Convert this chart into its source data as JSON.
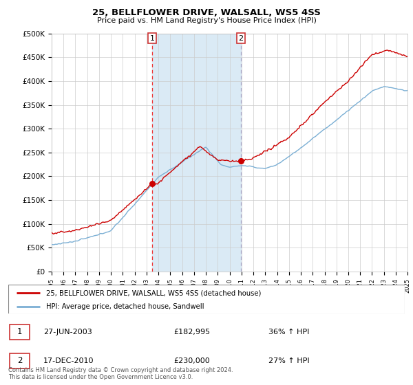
{
  "title": "25, BELLFLOWER DRIVE, WALSALL, WS5 4SS",
  "subtitle": "Price paid vs. HM Land Registry's House Price Index (HPI)",
  "ylim": [
    0,
    500000
  ],
  "yticks": [
    0,
    50000,
    100000,
    150000,
    200000,
    250000,
    300000,
    350000,
    400000,
    450000,
    500000
  ],
  "ytick_labels": [
    "£0",
    "£50K",
    "£100K",
    "£150K",
    "£200K",
    "£250K",
    "£300K",
    "£350K",
    "£400K",
    "£450K",
    "£500K"
  ],
  "hpi_color": "#7bafd4",
  "price_color": "#cc0000",
  "vline1_color": "#ee3333",
  "vline2_color": "#aaaacc",
  "shade_color": "#daeaf5",
  "legend_line1": "25, BELLFLOWER DRIVE, WALSALL, WS5 4SS (detached house)",
  "legend_line2": "HPI: Average price, detached house, Sandwell",
  "table_rows": [
    {
      "num": "1",
      "date": "27-JUN-2003",
      "price": "£182,995",
      "hpi": "36% ↑ HPI"
    },
    {
      "num": "2",
      "date": "17-DEC-2010",
      "price": "£230,000",
      "hpi": "27% ↑ HPI"
    }
  ],
  "footnote": "Contains HM Land Registry data © Crown copyright and database right 2024.\nThis data is licensed under the Open Government Licence v3.0.",
  "background_color": "#ffffff",
  "plot_bg_color": "#ffffff",
  "grid_color": "#cccccc",
  "sale1_year": 2003.46,
  "sale1_price": 182995,
  "sale2_year": 2010.96,
  "sale2_price": 230000
}
